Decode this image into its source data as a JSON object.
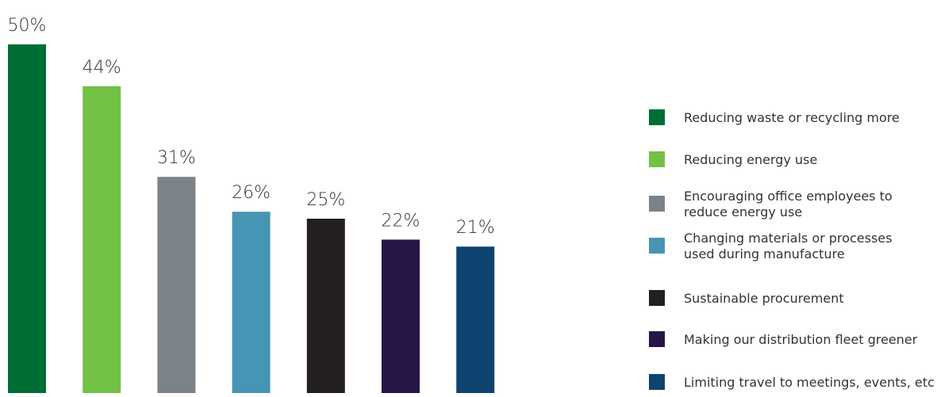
{
  "chart_data": {
    "type": "bar",
    "title": "",
    "xlabel": "",
    "ylabel": "",
    "ylim": [
      0,
      50
    ],
    "grid": false,
    "legend_position": "right",
    "categories": [
      "Reducing waste or recycling more",
      "Reducing energy use",
      "Encouraging office employees to reduce energy use",
      "Changing materials or processes used during manufacture",
      "Sustainable procurement",
      "Making our distribution fleet greener",
      "Limiting travel to meetings, events, etc"
    ],
    "values": [
      50,
      44,
      31,
      26,
      25,
      22,
      21
    ],
    "value_labels": [
      "50%",
      "44%",
      "31%",
      "26%",
      "25%",
      "22%",
      "21%"
    ],
    "colors": [
      "#006e35",
      "#72c145",
      "#7b8288",
      "#4795b4",
      "#231f20",
      "#271548",
      "#0e4370"
    ],
    "legend": [
      {
        "lines": [
          "Reducing waste or recycling more"
        ],
        "color": "#006e35"
      },
      {
        "lines": [
          "Reducing energy use"
        ],
        "color": "#72c145"
      },
      {
        "lines": [
          "Encouraging office employees to",
          "reduce energy use"
        ],
        "color": "#7b8288"
      },
      {
        "lines": [
          "Changing materials or processes",
          "used during manufacture"
        ],
        "color": "#4795b4"
      },
      {
        "lines": [
          "Sustainable procurement"
        ],
        "color": "#231f20"
      },
      {
        "lines": [
          "Making our distribution fleet greener"
        ],
        "color": "#271548"
      },
      {
        "lines": [
          "Limiting travel to meetings, events, etc"
        ],
        "color": "#0e4370"
      }
    ]
  }
}
